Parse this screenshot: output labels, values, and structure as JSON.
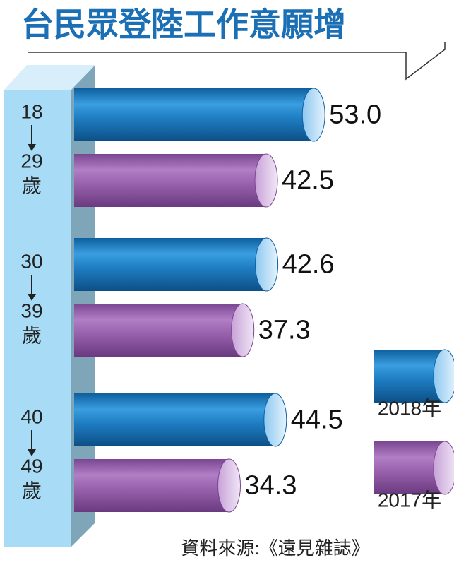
{
  "chart_data": {
    "type": "bar",
    "orientation": "horizontal",
    "title": "台民眾登陸工作意願增",
    "categories": [
      [
        "18",
        "29",
        "歲"
      ],
      [
        "30",
        "39",
        "歲"
      ],
      [
        "40",
        "49",
        "歲"
      ]
    ],
    "series": [
      {
        "name": "2018年",
        "color": "#1f7fc4",
        "values": [
          53.0,
          42.6,
          44.5
        ],
        "value_labels": [
          "53.0",
          "42.6",
          "44.5"
        ]
      },
      {
        "name": "2017年",
        "color": "#9a63ae",
        "values": [
          42.5,
          37.3,
          34.3
        ],
        "value_labels": [
          "42.5",
          "37.3",
          "34.3"
        ]
      }
    ],
    "source": "資料來源:《遠見雜誌》"
  }
}
